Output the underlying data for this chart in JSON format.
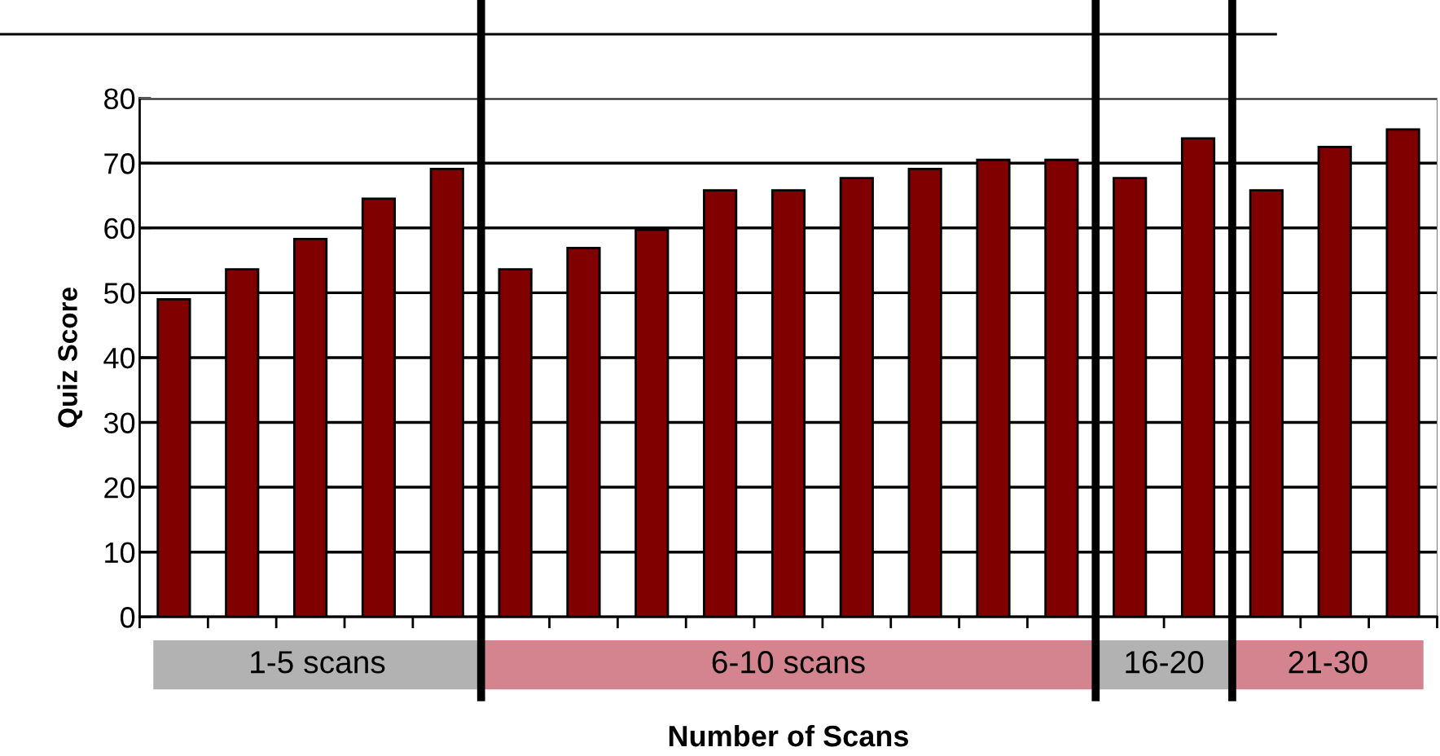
{
  "chart_data": {
    "type": "bar",
    "xlabel": "Number of Scans",
    "ylabel": "Quiz Score",
    "categories": [
      null,
      null,
      null,
      null,
      null,
      null,
      null,
      null,
      null,
      null,
      null,
      null,
      null,
      null,
      null,
      null,
      null,
      null,
      null
    ],
    "values": [
      49,
      53.6,
      58.3,
      64.5,
      69.1,
      53.6,
      56.9,
      59.7,
      65.8,
      65.8,
      67.7,
      69.1,
      70.5,
      70.5,
      67.7,
      73.8,
      65.8,
      72.5,
      75.2
    ],
    "color": "#800000",
    "ylim": [
      0,
      80
    ],
    "yticks": [
      0,
      10,
      20,
      30,
      40,
      50,
      60,
      70,
      80
    ],
    "grid": "y",
    "annotations": [
      "1-5 scans",
      "6-10 scans",
      "16-20",
      "21-30"
    ]
  }
}
